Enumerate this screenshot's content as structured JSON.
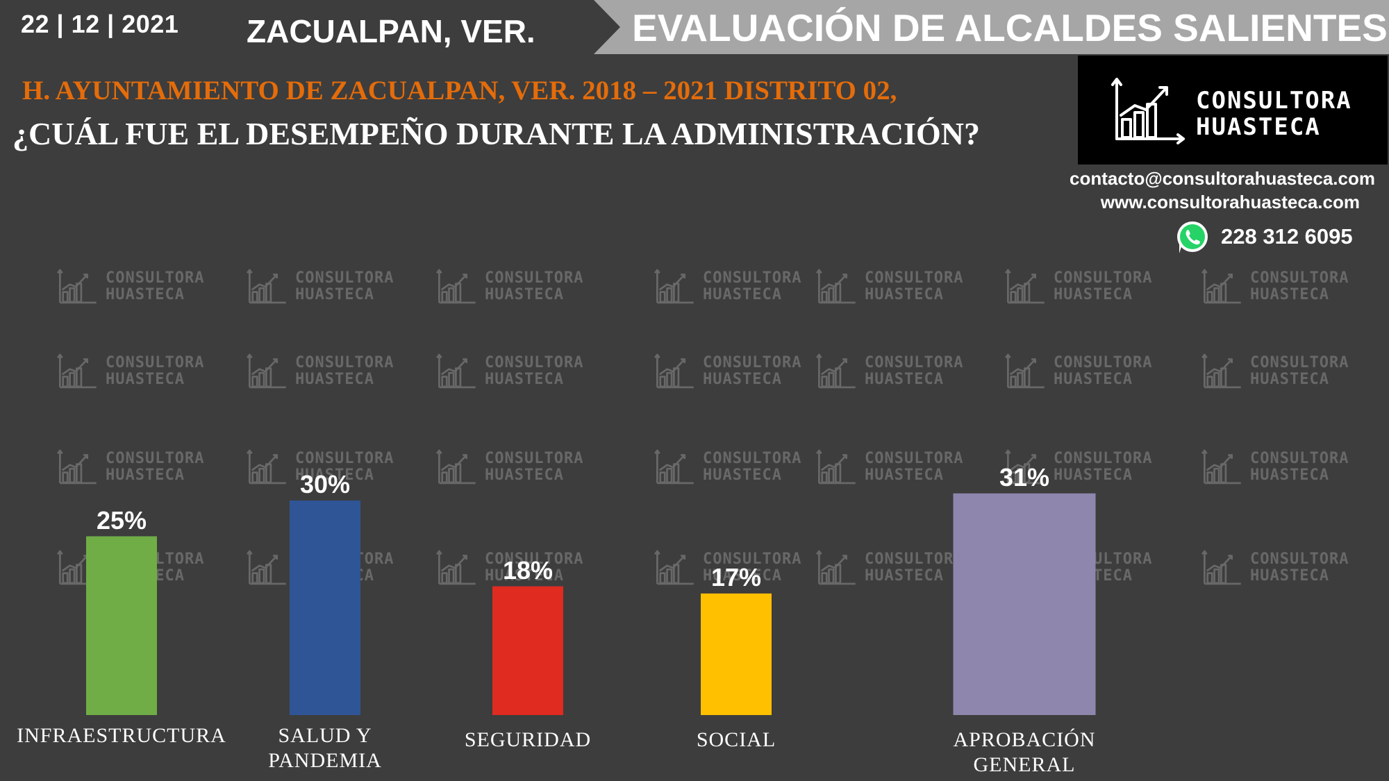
{
  "header": {
    "date": "22 | 12 | 2021",
    "place": "ZACUALPAN, VER.",
    "banner_title": "EVALUACIÓN DE ALCALDES SALIENTES",
    "subtitle": "H. AYUNTAMIENTO DE ZACUALPAN, VER. 2018 – 2021 DISTRITO 02,",
    "question": "¿CUÁL FUE EL DESEMPEÑO DURANTE LA ADMINISTRACIÓN?"
  },
  "brand": {
    "logo_line1": "CONSULTORA",
    "logo_line2": "HUASTECA",
    "email": "contacto@consultorahuasteca.com",
    "website": "www.consultorahuasteca.com",
    "phone": "228 312 6095",
    "phone_icon": "whatsapp-icon",
    "logo_icon": "bar-chart-growth-icon"
  },
  "chart_data": {
    "type": "bar",
    "categories": [
      "INFRAESTRUCTURA",
      "SALUD Y PANDEMIA",
      "SEGURIDAD",
      "SOCIAL",
      "APROBACIÓN GENERAL"
    ],
    "category_lines": [
      [
        "INFRAESTRUCTURA"
      ],
      [
        "SALUD Y",
        "PANDEMIA"
      ],
      [
        "SEGURIDAD"
      ],
      [
        "SOCIAL"
      ],
      [
        "APROBACIÓN",
        "GENERAL"
      ]
    ],
    "values": [
      25,
      30,
      18,
      17,
      31
    ],
    "value_labels": [
      "25%",
      "30%",
      "18%",
      "17%",
      "31%"
    ],
    "colors": [
      "#70ad47",
      "#2f5597",
      "#e02b20",
      "#ffc000",
      "#8e86ad"
    ],
    "title": "",
    "xlabel": "",
    "ylabel": "",
    "ylim": [
      0,
      35
    ],
    "grid": false,
    "legend": "none"
  }
}
